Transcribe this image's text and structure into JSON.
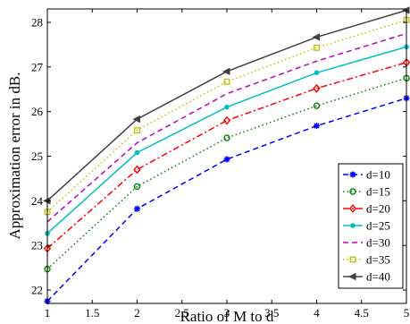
{
  "chart_data": {
    "type": "line",
    "xlabel": "Ratio of M to d",
    "ylabel": "Approximation error in dB.",
    "xlim": [
      1,
      5
    ],
    "ylim": [
      21.7,
      28.3
    ],
    "xticks": [
      1,
      1.5,
      2,
      2.5,
      3,
      3.5,
      4,
      4.5,
      5
    ],
    "xtick_labels": [
      "1",
      "1.5",
      "2",
      "2.5",
      "3",
      "3.5",
      "4",
      "4.5",
      "5"
    ],
    "yticks": [
      22,
      23,
      24,
      25,
      26,
      27,
      28
    ],
    "ytick_labels": [
      "22",
      "23",
      "24",
      "25",
      "26",
      "27",
      "28"
    ],
    "grid": false,
    "legend_position": "bottom-right",
    "x": [
      1,
      2,
      3,
      4,
      5
    ],
    "series": [
      {
        "name": "d=10",
        "values": [
          21.75,
          23.82,
          24.93,
          25.68,
          26.3
        ],
        "color": "#0000ff",
        "dash": "6,4",
        "marker": "star"
      },
      {
        "name": "d=15",
        "values": [
          22.47,
          24.32,
          25.41,
          26.13,
          26.75
        ],
        "color": "#008000",
        "dash": "1.5,3",
        "marker": "circle"
      },
      {
        "name": "d=20",
        "values": [
          22.93,
          24.7,
          25.8,
          26.52,
          27.1
        ],
        "color": "#ff0000",
        "dash": "7,3,2,3",
        "marker": "diamond"
      },
      {
        "name": "d=25",
        "values": [
          23.27,
          25.08,
          26.1,
          26.87,
          27.45
        ],
        "color": "#00bfbf",
        "dash": "",
        "marker": "dot"
      },
      {
        "name": "d=30",
        "values": [
          23.53,
          25.3,
          26.4,
          27.13,
          27.75
        ],
        "color": "#bf00bf",
        "dash": "6,4",
        "marker": "none"
      },
      {
        "name": "d=35",
        "values": [
          23.75,
          25.58,
          26.67,
          27.43,
          28.05
        ],
        "color": "#bfbf00",
        "dash": "1.5,3",
        "marker": "square"
      },
      {
        "name": "d=40",
        "values": [
          24.0,
          25.83,
          26.9,
          27.67,
          28.27
        ],
        "color": "#404040",
        "dash": "",
        "marker": "triangle-left"
      }
    ]
  }
}
